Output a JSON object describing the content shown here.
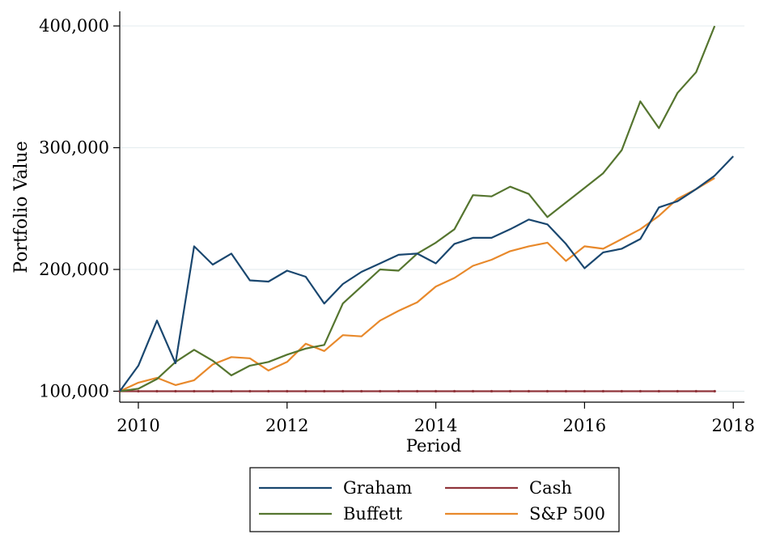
{
  "chart_data": {
    "type": "line",
    "title": "",
    "xlabel": "Period",
    "ylabel": "Portfolio Value",
    "xlim": [
      2009.75,
      2018.15
    ],
    "ylim": [
      91000,
      412000
    ],
    "xticks": [
      2010,
      2012,
      2014,
      2016,
      2018
    ],
    "xtick_labels": [
      "2010",
      "2012",
      "2014",
      "2016",
      "2018"
    ],
    "yticks": [
      100000,
      200000,
      300000,
      400000
    ],
    "ytick_labels": [
      "100,000",
      "200,000",
      "300,000",
      "400,000"
    ],
    "grid": "horizontal",
    "legend_position": "bottom",
    "series": [
      {
        "name": "Graham",
        "color": "#1a476f",
        "x": [
          2009.75,
          2010.0,
          2010.25,
          2010.5,
          2010.75,
          2011.0,
          2011.25,
          2011.5,
          2011.75,
          2012.0,
          2012.25,
          2012.5,
          2012.75,
          2013.0,
          2013.25,
          2013.5,
          2013.75,
          2014.0,
          2014.25,
          2014.5,
          2014.75,
          2015.0,
          2015.25,
          2015.5,
          2015.75,
          2016.0,
          2016.25,
          2016.5,
          2016.75,
          2017.0,
          2017.25,
          2017.5,
          2017.75,
          2018.0
        ],
        "values": [
          100000,
          121000,
          158000,
          123000,
          219000,
          204000,
          213000,
          191000,
          190000,
          199000,
          194000,
          172000,
          188000,
          198000,
          205000,
          212000,
          213000,
          205000,
          221000,
          226000,
          226000,
          233000,
          241000,
          237000,
          221000,
          201000,
          214000,
          217000,
          225000,
          251000,
          256000,
          266000,
          277000,
          293000
        ]
      },
      {
        "name": "Buffett",
        "color": "#55752f",
        "x": [
          2009.75,
          2010.0,
          2010.25,
          2010.5,
          2010.75,
          2011.0,
          2011.25,
          2011.5,
          2011.75,
          2012.0,
          2012.25,
          2012.5,
          2012.75,
          2013.0,
          2013.25,
          2013.5,
          2013.75,
          2014.0,
          2014.25,
          2014.5,
          2014.75,
          2015.0,
          2015.25,
          2015.5,
          2015.75,
          2016.0,
          2016.25,
          2016.5,
          2016.75,
          2017.0,
          2017.25,
          2017.5,
          2017.75
        ],
        "values": [
          100000,
          102000,
          110000,
          124000,
          134000,
          125000,
          113000,
          121000,
          124000,
          130000,
          135000,
          138000,
          172000,
          186000,
          200000,
          199000,
          213000,
          222000,
          233000,
          261000,
          260000,
          268000,
          262000,
          243000,
          255000,
          267000,
          279000,
          298000,
          338000,
          316000,
          345000,
          362000,
          400000
        ]
      },
      {
        "name": "Cash",
        "color": "#90353b",
        "x": [
          2009.75,
          2010.0,
          2010.25,
          2010.5,
          2010.75,
          2011.0,
          2011.25,
          2011.5,
          2011.75,
          2012.0,
          2012.25,
          2012.5,
          2012.75,
          2013.0,
          2013.25,
          2013.5,
          2013.75,
          2014.0,
          2014.25,
          2014.5,
          2014.75,
          2015.0,
          2015.25,
          2015.5,
          2015.75,
          2016.0,
          2016.25,
          2016.5,
          2016.75,
          2017.0,
          2017.25,
          2017.5,
          2017.75
        ],
        "values": [
          100000,
          100000,
          100000,
          100000,
          100000,
          100000,
          100000,
          100000,
          100000,
          100000,
          100000,
          100000,
          100000,
          100000,
          100000,
          100000,
          100000,
          100000,
          100000,
          100000,
          100000,
          100000,
          100000,
          100000,
          100000,
          100000,
          100000,
          100000,
          100000,
          100000,
          100000,
          100000,
          100000
        ]
      },
      {
        "name": "S&P 500",
        "color": "#e8892b",
        "x": [
          2009.75,
          2010.0,
          2010.25,
          2010.5,
          2010.75,
          2011.0,
          2011.25,
          2011.5,
          2011.75,
          2012.0,
          2012.25,
          2012.5,
          2012.75,
          2013.0,
          2013.25,
          2013.5,
          2013.75,
          2014.0,
          2014.25,
          2014.5,
          2014.75,
          2015.0,
          2015.25,
          2015.5,
          2015.75,
          2016.0,
          2016.25,
          2016.5,
          2016.75,
          2017.0,
          2017.25,
          2017.5,
          2017.75
        ],
        "values": [
          100000,
          107000,
          111000,
          105000,
          109000,
          122000,
          128000,
          127000,
          117000,
          124000,
          139000,
          133000,
          146000,
          145000,
          158000,
          166000,
          173000,
          186000,
          193000,
          203000,
          208000,
          215000,
          219000,
          222000,
          207000,
          219000,
          217000,
          225000,
          233000,
          244000,
          258000,
          266000,
          275000
        ]
      }
    ],
    "legend": [
      {
        "label": "Graham",
        "color": "#1a476f"
      },
      {
        "label": "Cash",
        "color": "#90353b"
      },
      {
        "label": "Buffett",
        "color": "#55752f"
      },
      {
        "label": "S&P 500",
        "color": "#e8892b"
      }
    ]
  }
}
